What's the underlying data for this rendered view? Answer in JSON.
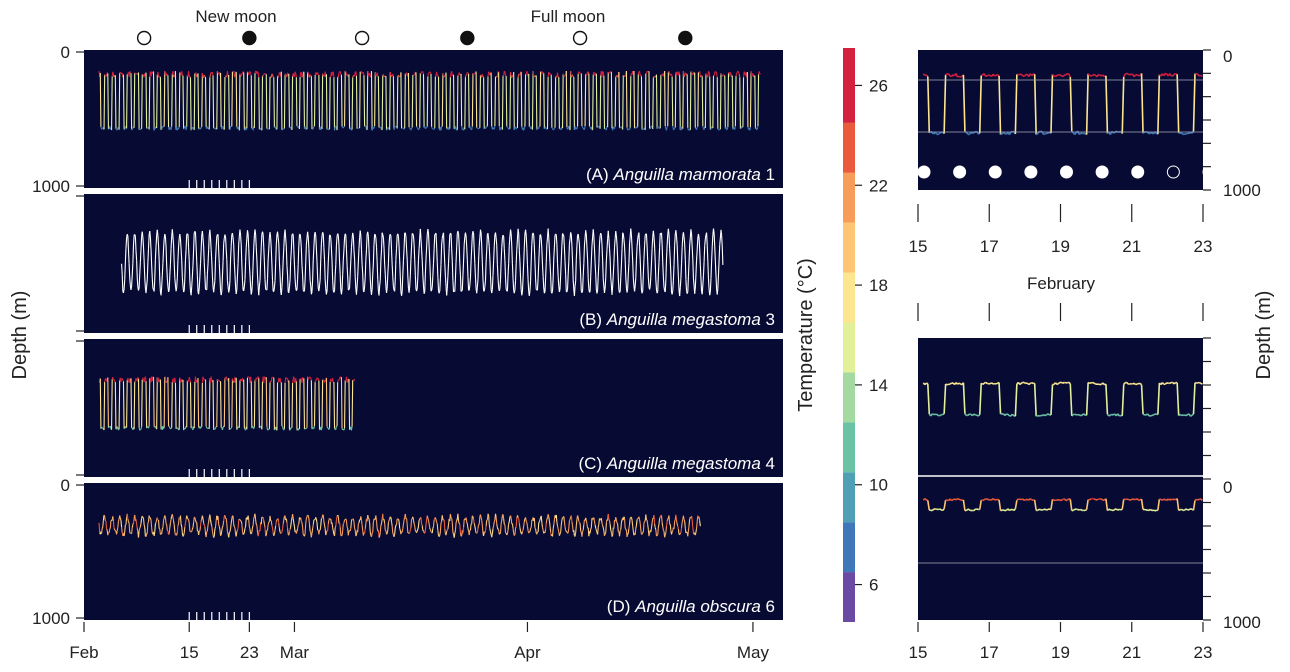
{
  "chart_data": {
    "type": "line",
    "moon_phases": {
      "labels": [
        "New moon",
        "Full moon"
      ],
      "markers": [
        {
          "day": 8,
          "phase": "full"
        },
        {
          "day": 22,
          "phase": "new"
        },
        {
          "day": 37,
          "phase": "full"
        },
        {
          "day": 51,
          "phase": "new"
        },
        {
          "day": 66,
          "phase": "full"
        },
        {
          "day": 80,
          "phase": "new"
        }
      ]
    },
    "y_axis_label": "Depth (m)",
    "x_axis": {
      "range_days": [
        0,
        93
      ],
      "ticks": [
        {
          "day": 0,
          "label": "Feb"
        },
        {
          "day": 14,
          "label": "15"
        },
        {
          "day": 22,
          "label": "23"
        },
        {
          "day": 28,
          "label": "Mar"
        },
        {
          "day": 59,
          "label": "Apr"
        },
        {
          "day": 89,
          "label": "May"
        }
      ]
    },
    "panels": [
      {
        "label": "(A)",
        "species": "Anguilla marmorata",
        "id": "1",
        "depth_ticks": [
          "0",
          "1000"
        ],
        "ylim": [
          0,
          1000
        ],
        "start_day": 2,
        "end_day": 90,
        "day_depth": 100,
        "night_depth": 600,
        "temp_range": [
          8,
          26
        ]
      },
      {
        "label": "(B)",
        "species": "Anguilla megastoma",
        "id": "3",
        "depth_ticks": [],
        "ylim": [
          0,
          1000
        ],
        "start_day": 5,
        "end_day": 85,
        "day_depth": 250,
        "night_depth": 800,
        "temp_range": [
          null,
          null
        ]
      },
      {
        "label": "(C)",
        "species": "Anguilla megastoma",
        "id": "4",
        "depth_ticks": [],
        "ylim": [
          0,
          1000
        ],
        "start_day": 2,
        "end_day": 36,
        "day_depth": 250,
        "night_depth": 700,
        "temp_range": [
          12,
          26
        ]
      },
      {
        "label": "(D)",
        "species": "Anguilla obscura",
        "id": "6",
        "depth_ticks": [
          "0",
          "1000"
        ],
        "ylim": [
          0,
          1000
        ],
        "start_day": 2,
        "end_day": 82,
        "day_depth": 220,
        "night_depth": 380,
        "temp_range": [
          14,
          24
        ]
      }
    ],
    "colorbar": {
      "title": "Temperature (°C)",
      "range": [
        4.5,
        27.5
      ],
      "ticks": [
        "26",
        "22",
        "18",
        "14",
        "10",
        "6"
      ],
      "tick_values": [
        26,
        22,
        18,
        14,
        10,
        6
      ],
      "band_edges": [
        4.5,
        6.5,
        8.5,
        10.5,
        12.5,
        14.5,
        16.5,
        18.5,
        20.5,
        22.5,
        24.5,
        27.5
      ],
      "colors": [
        "#6a4aa3",
        "#3f78b8",
        "#4fa0b4",
        "#6bc2a4",
        "#a4d99f",
        "#e2f09a",
        "#fde690",
        "#fdc574",
        "#f89d59",
        "#ea5a3c",
        "#d3213f"
      ]
    },
    "zoom_panels": {
      "month_label": "February",
      "x_range": [
        15,
        23
      ],
      "x_ticks": [
        "15",
        "17",
        "19",
        "21",
        "23"
      ],
      "x_tick_values": [
        15,
        17,
        19,
        21,
        23
      ],
      "depth_ticks": [
        "0",
        "1000"
      ],
      "y_axis_label": "Depth (m)",
      "top": {
        "day_depth": 150,
        "night_depth": 600
      },
      "bottom_upper": {
        "day_depth": 230,
        "night_depth": 600
      },
      "bottom_lower": {
        "day_depth": 200,
        "night_depth": 350
      }
    }
  }
}
